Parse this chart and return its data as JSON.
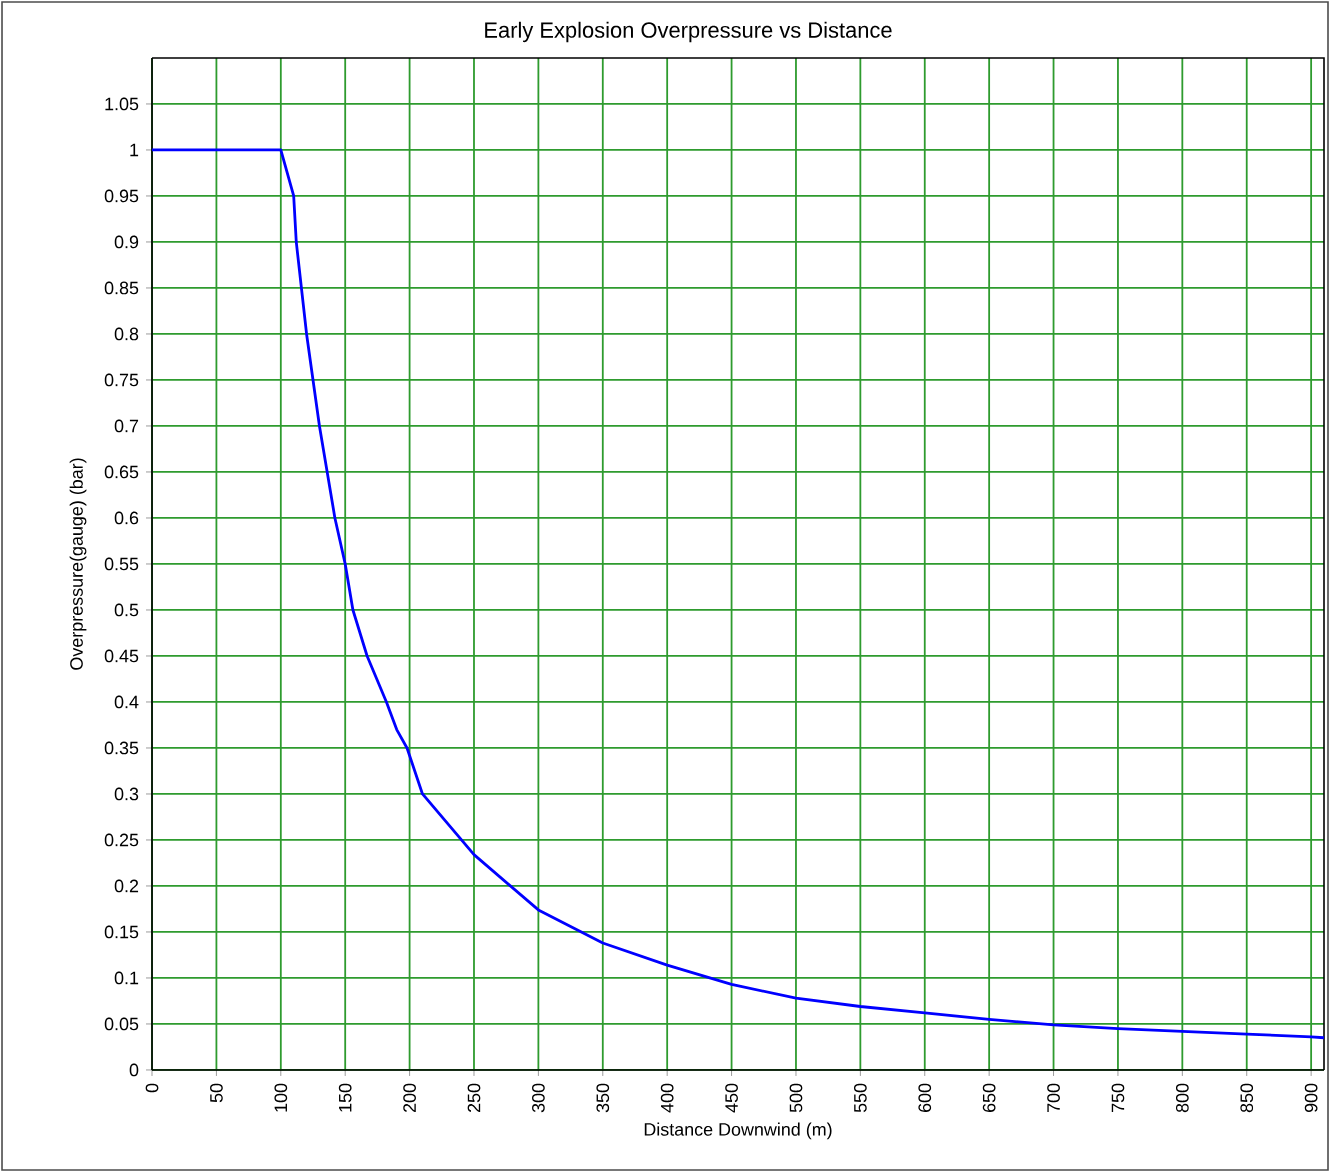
{
  "chart_data": {
    "type": "line",
    "title": "Early Explosion Overpressure vs Distance",
    "xlabel": "Distance Downwind (m)",
    "ylabel": "Overpressure(gauge) (bar)",
    "x": [
      0,
      50,
      100,
      110,
      112,
      120,
      130,
      142,
      150,
      156,
      167,
      182,
      190,
      198,
      210,
      250,
      300,
      350,
      400,
      450,
      500,
      550,
      600,
      650,
      700,
      750,
      800,
      850,
      900,
      910
    ],
    "series": [
      {
        "color": "#0000ff",
        "values": [
          1,
          1,
          1,
          0.95,
          0.9,
          0.8,
          0.7,
          0.6,
          0.55,
          0.5,
          0.45,
          0.4,
          0.37,
          0.35,
          0.3,
          0.234,
          0.174,
          0.138,
          0.114,
          0.093,
          0.078,
          0.069,
          0.062,
          0.055,
          0.049,
          0.045,
          0.042,
          0.039,
          0.036,
          0.035
        ]
      }
    ],
    "xlim": [
      0,
      910
    ],
    "ylim": [
      0,
      1.1
    ],
    "xticks": [
      0,
      50,
      100,
      150,
      200,
      250,
      300,
      350,
      400,
      450,
      500,
      550,
      600,
      650,
      700,
      750,
      800,
      850,
      900
    ],
    "yticks": [
      0,
      0.05,
      0.1,
      0.15,
      0.2,
      0.25,
      0.3,
      0.35,
      0.4,
      0.45,
      0.5,
      0.55,
      0.6,
      0.65,
      0.7,
      0.75,
      0.8,
      0.85,
      0.9,
      0.95,
      1,
      1.05
    ],
    "grid": true,
    "marker": "none",
    "line_style": "solid"
  }
}
